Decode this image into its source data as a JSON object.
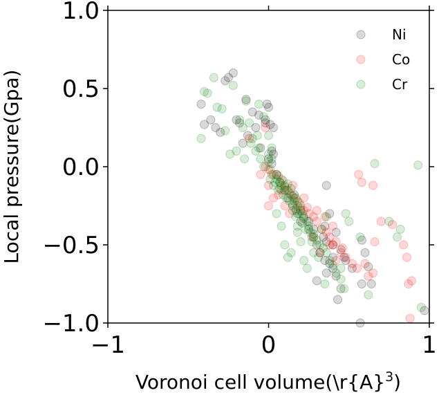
{
  "chart_data": {
    "type": "scatter",
    "title": "",
    "xlabel": "Voronoi cell volume(\\r{A}$^3$)",
    "ylabel": "Local pressure(Gpa)",
    "xlim": [
      -1,
      1
    ],
    "ylim": [
      -1,
      1
    ],
    "x_ticks": [
      -1,
      0,
      1
    ],
    "y_ticks": [
      -1.0,
      -0.5,
      0.0,
      0.5,
      1.0
    ],
    "x_tick_labels": [
      "−1",
      "0",
      "1"
    ],
    "y_tick_labels": [
      "−1.0",
      "−0.5",
      "0.0",
      "0.5",
      "1.0"
    ],
    "grid": false,
    "legend_position": "top-right",
    "marker_alpha": 0.15,
    "series": [
      {
        "name": "Ni",
        "color": "#000000",
        "points": [
          [
            -0.42,
            0.4
          ],
          [
            -0.4,
            0.27
          ],
          [
            -0.36,
            0.3
          ],
          [
            -0.33,
            0.25
          ],
          [
            -0.3,
            0.22
          ],
          [
            -0.27,
            0.55
          ],
          [
            -0.25,
            0.57
          ],
          [
            -0.22,
            0.6
          ],
          [
            -0.2,
            0.3
          ],
          [
            -0.18,
            0.28
          ],
          [
            -0.16,
            0.15
          ],
          [
            -0.14,
            0.43
          ],
          [
            -0.13,
            0.2
          ],
          [
            -0.1,
            0.35
          ],
          [
            -0.08,
            0.25
          ],
          [
            -0.06,
            0.33
          ],
          [
            -0.05,
            0.12
          ],
          [
            -0.02,
            0.28
          ],
          [
            -0.01,
            0.4
          ],
          [
            0.0,
            0.38
          ],
          [
            0.01,
            0.27
          ],
          [
            0.02,
            0.1
          ],
          [
            0.0,
            0.05
          ],
          [
            0.02,
            0.02
          ],
          [
            0.03,
            0.08
          ],
          [
            -0.02,
            0.3
          ],
          [
            0.03,
            0.25
          ],
          [
            0.05,
            -0.05
          ],
          [
            0.07,
            -0.1
          ],
          [
            0.1,
            -0.15
          ],
          [
            0.12,
            -0.2
          ],
          [
            0.15,
            -0.25
          ],
          [
            0.18,
            -0.3
          ],
          [
            0.2,
            -0.35
          ],
          [
            0.22,
            -0.33
          ],
          [
            0.25,
            -0.4
          ],
          [
            0.27,
            -0.45
          ],
          [
            0.3,
            -0.5
          ],
          [
            0.32,
            -0.55
          ],
          [
            0.35,
            -0.6
          ],
          [
            0.38,
            -0.62
          ],
          [
            0.4,
            -0.65
          ],
          [
            0.42,
            -0.7
          ],
          [
            0.45,
            -0.78
          ],
          [
            0.43,
            -0.85
          ],
          [
            0.3,
            -0.73
          ],
          [
            0.36,
            -0.68
          ],
          [
            0.28,
            -0.4
          ],
          [
            0.25,
            -0.35
          ],
          [
            0.38,
            -0.3
          ],
          [
            0.36,
            -0.48
          ],
          [
            0.4,
            -0.5
          ],
          [
            0.45,
            -0.53
          ],
          [
            0.48,
            -0.6
          ],
          [
            0.58,
            -0.47
          ],
          [
            0.6,
            -0.55
          ],
          [
            0.52,
            -0.65
          ],
          [
            0.4,
            -0.58
          ],
          [
            0.34,
            -0.45
          ],
          [
            0.2,
            -0.28
          ],
          [
            0.42,
            -0.42
          ],
          [
            0.47,
            -0.58
          ],
          [
            0.35,
            -0.38
          ],
          [
            0.57,
            -1.0
          ],
          [
            0.97,
            -0.92
          ],
          [
            0.64,
            -0.75
          ],
          [
            0.58,
            -0.75
          ],
          [
            0.62,
            -0.64
          ],
          [
            0.36,
            -0.12
          ],
          [
            0.16,
            -0.18
          ]
        ]
      },
      {
        "name": "Co",
        "color": "#ff0000",
        "points": [
          [
            -0.02,
            0.0
          ],
          [
            0.0,
            -0.02
          ],
          [
            0.02,
            -0.05
          ],
          [
            0.05,
            -0.05
          ],
          [
            0.08,
            -0.08
          ],
          [
            0.1,
            -0.12
          ],
          [
            0.12,
            -0.15
          ],
          [
            0.14,
            -0.18
          ],
          [
            0.16,
            -0.2
          ],
          [
            0.18,
            -0.22
          ],
          [
            0.2,
            -0.25
          ],
          [
            0.22,
            -0.28
          ],
          [
            0.25,
            -0.3
          ],
          [
            0.28,
            -0.32
          ],
          [
            0.3,
            -0.35
          ],
          [
            0.33,
            -0.4
          ],
          [
            0.36,
            -0.42
          ],
          [
            0.38,
            -0.45
          ],
          [
            0.4,
            -0.5
          ],
          [
            0.42,
            -0.48
          ],
          [
            0.45,
            -0.55
          ],
          [
            0.48,
            -0.58
          ],
          [
            0.52,
            -0.62
          ],
          [
            0.55,
            -0.65
          ],
          [
            0.6,
            -0.62
          ],
          [
            0.62,
            -0.7
          ],
          [
            0.65,
            -0.68
          ],
          [
            0.56,
            -0.05
          ],
          [
            0.58,
            -0.1
          ],
          [
            0.65,
            -0.12
          ],
          [
            0.7,
            -0.35
          ],
          [
            0.66,
            -0.48
          ],
          [
            0.77,
            -0.37
          ],
          [
            0.84,
            -0.5
          ],
          [
            0.86,
            -0.58
          ],
          [
            0.87,
            -0.75
          ],
          [
            0.89,
            -0.73
          ],
          [
            0.88,
            -0.97
          ],
          [
            -0.02,
            0.25
          ],
          [
            -0.12,
            0.18
          ],
          [
            -0.05,
            -0.05
          ],
          [
            0.0,
            -0.12
          ],
          [
            0.03,
            -0.2
          ],
          [
            0.0,
            -0.25
          ],
          [
            0.06,
            -0.18
          ],
          [
            0.1,
            -0.25
          ],
          [
            0.13,
            -0.3
          ],
          [
            0.17,
            -0.27
          ],
          [
            0.22,
            -0.2
          ],
          [
            0.08,
            -0.15
          ],
          [
            0.15,
            -0.12
          ],
          [
            0.24,
            -0.26
          ],
          [
            0.3,
            -0.28
          ],
          [
            0.35,
            -0.32
          ],
          [
            0.4,
            -0.38
          ],
          [
            0.28,
            -0.45
          ],
          [
            0.32,
            -0.55
          ],
          [
            0.38,
            -0.5
          ],
          [
            0.42,
            -0.6
          ],
          [
            0.46,
            -0.52
          ]
        ]
      },
      {
        "name": "Cr",
        "color": "#008000",
        "points": [
          [
            -0.42,
            0.18
          ],
          [
            -0.4,
            0.48
          ],
          [
            -0.38,
            0.47
          ],
          [
            -0.34,
            0.57
          ],
          [
            -0.32,
            0.38
          ],
          [
            -0.29,
            0.37
          ],
          [
            -0.27,
            0.23
          ],
          [
            -0.24,
            0.08
          ],
          [
            -0.22,
            0.52
          ],
          [
            -0.2,
            0.1
          ],
          [
            -0.18,
            0.3
          ],
          [
            -0.16,
            0.25
          ],
          [
            -0.15,
            0.05
          ],
          [
            -0.12,
            0.28
          ],
          [
            -0.11,
            0.15
          ],
          [
            -0.1,
            0.18
          ],
          [
            -0.08,
            0.1
          ],
          [
            -0.07,
            0.2
          ],
          [
            -0.06,
            0.12
          ],
          [
            -0.05,
            0.05
          ],
          [
            -0.03,
            0.0
          ],
          [
            0.0,
            0.03
          ],
          [
            0.0,
            0.08
          ],
          [
            0.02,
            0.12
          ],
          [
            0.01,
            -0.02
          ],
          [
            0.03,
            -0.05
          ],
          [
            0.05,
            -0.08
          ],
          [
            0.06,
            -0.06
          ],
          [
            0.07,
            -0.1
          ],
          [
            0.08,
            -0.12
          ],
          [
            0.09,
            -0.09
          ],
          [
            0.1,
            -0.13
          ],
          [
            0.11,
            -0.15
          ],
          [
            0.12,
            -0.11
          ],
          [
            0.13,
            -0.17
          ],
          [
            0.14,
            -0.14
          ],
          [
            0.15,
            -0.19
          ],
          [
            0.16,
            -0.22
          ],
          [
            0.17,
            -0.2
          ],
          [
            0.18,
            -0.25
          ],
          [
            0.19,
            -0.23
          ],
          [
            0.2,
            -0.27
          ],
          [
            0.21,
            -0.3
          ],
          [
            0.22,
            -0.32
          ],
          [
            0.24,
            -0.35
          ],
          [
            0.25,
            -0.38
          ],
          [
            0.26,
            -0.42
          ],
          [
            0.28,
            -0.45
          ],
          [
            0.3,
            -0.47
          ],
          [
            0.32,
            -0.5
          ],
          [
            0.34,
            -0.52
          ],
          [
            0.36,
            -0.55
          ],
          [
            0.38,
            -0.6
          ],
          [
            0.4,
            -0.63
          ],
          [
            0.42,
            -0.68
          ],
          [
            0.45,
            -0.72
          ],
          [
            0.47,
            -0.78
          ],
          [
            0.35,
            -0.75
          ],
          [
            0.45,
            -0.65
          ],
          [
            0.05,
            -0.3
          ],
          [
            0.08,
            -0.38
          ],
          [
            0.1,
            -0.5
          ],
          [
            0.14,
            -0.55
          ],
          [
            0.18,
            -0.42
          ],
          [
            0.22,
            -0.6
          ],
          [
            0.12,
            -0.58
          ],
          [
            0.24,
            -0.65
          ],
          [
            0.2,
            -0.48
          ],
          [
            0.28,
            -0.55
          ],
          [
            0.33,
            -0.4
          ],
          [
            0.36,
            -0.32
          ],
          [
            0.48,
            -0.3
          ],
          [
            0.5,
            -0.35
          ],
          [
            0.57,
            -0.45
          ],
          [
            0.66,
            0.02
          ],
          [
            0.75,
            -0.35
          ],
          [
            0.82,
            -0.4
          ],
          [
            0.8,
            -0.45
          ],
          [
            0.93,
            0.01
          ],
          [
            0.95,
            -0.9
          ],
          [
            0.62,
            -0.82
          ],
          [
            0.28,
            -0.43
          ],
          [
            -0.03,
            0.32
          ],
          [
            -0.06,
            0.4
          ],
          [
            -0.14,
            0.42
          ],
          [
            0.0,
            0.2
          ],
          [
            0.02,
            0.05
          ],
          [
            0.01,
            -0.08
          ],
          [
            0.03,
            -0.12
          ],
          [
            0.06,
            -0.15
          ],
          [
            0.09,
            -0.18
          ],
          [
            0.04,
            -0.1
          ],
          [
            0.07,
            -0.14
          ],
          [
            0.11,
            -0.2
          ],
          [
            0.13,
            -0.22
          ],
          [
            0.15,
            -0.24
          ],
          [
            0.17,
            -0.28
          ],
          [
            0.19,
            -0.3
          ],
          [
            0.23,
            -0.4
          ],
          [
            0.27,
            -0.48
          ],
          [
            0.31,
            -0.58
          ],
          [
            0.15,
            -0.28
          ],
          [
            0.17,
            -0.32
          ],
          [
            0.21,
            -0.36
          ],
          [
            0.18,
            -0.38
          ]
        ]
      }
    ]
  }
}
